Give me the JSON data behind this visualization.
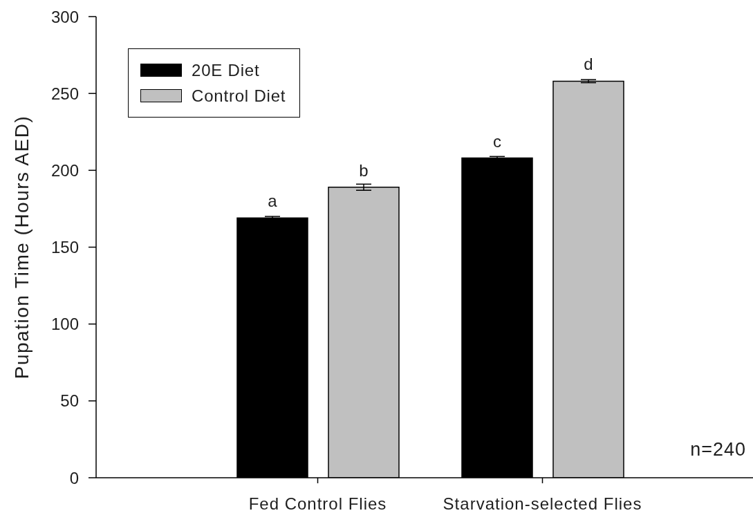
{
  "chart_data": {
    "type": "bar",
    "ylabel": "Pupation Time (Hours AED)",
    "categories": [
      "Fed Control Flies",
      "Starvation-selected Flies"
    ],
    "series": [
      {
        "name": "20E Diet",
        "color": "#000000",
        "values": [
          169,
          208
        ],
        "errors": [
          1,
          1
        ],
        "value_labels": [
          "a",
          "c"
        ]
      },
      {
        "name": "Control Diet",
        "color": "#c0c0c0",
        "values": [
          189,
          258
        ],
        "errors": [
          2,
          1
        ],
        "value_labels": [
          "b",
          "d"
        ]
      }
    ],
    "ylim": [
      0,
      300
    ],
    "yticks": [
      0,
      50,
      100,
      150,
      200,
      250,
      300
    ],
    "legend": "top left",
    "annotations": [
      "n=240"
    ]
  }
}
